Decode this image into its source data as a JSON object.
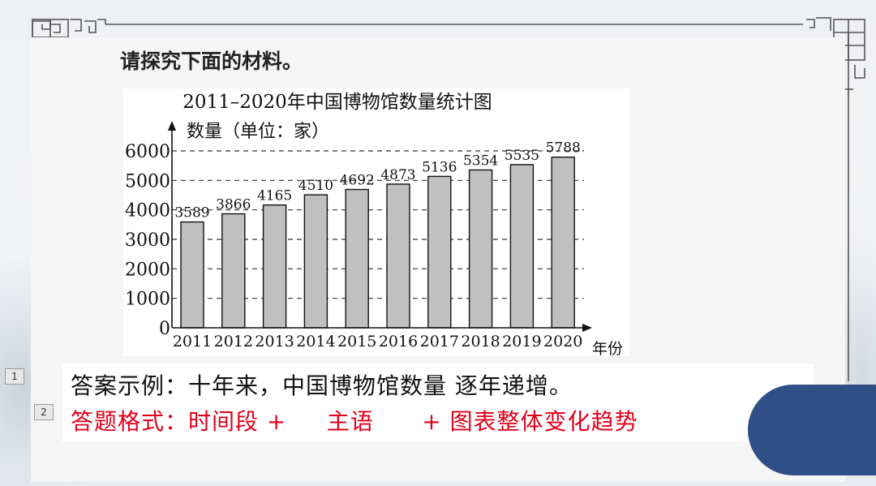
{
  "slide": {
    "heading": "请探究下面的材料。",
    "answer_example": "答案示例：十年来，中国博物馆数量 逐年递增。",
    "answer_format": "答题格式：时间段 +     主语      + 图表整体变化趋势",
    "badge_1": "1",
    "badge_2": "2"
  },
  "chart_data": {
    "type": "bar",
    "title": "2011–2020年中国博物馆数量统计图",
    "ylabel": "数量（单位：家）",
    "xlabel": "年份",
    "categories": [
      "2011",
      "2012",
      "2013",
      "2014",
      "2015",
      "2016",
      "2017",
      "2018",
      "2019",
      "2020"
    ],
    "values": [
      3589,
      3866,
      4165,
      4510,
      4692,
      4873,
      5136,
      5354,
      5535,
      5788
    ],
    "ylim": [
      0,
      6000
    ],
    "yticks": [
      "0",
      "1000",
      "2000",
      "3000",
      "4000",
      "5000",
      "6000"
    ],
    "grid": "dashed horizontal",
    "bar_color": "#c0c0c0"
  },
  "colors": {
    "format_text": "#e0001a",
    "accent_blob": "#2f4f86"
  }
}
